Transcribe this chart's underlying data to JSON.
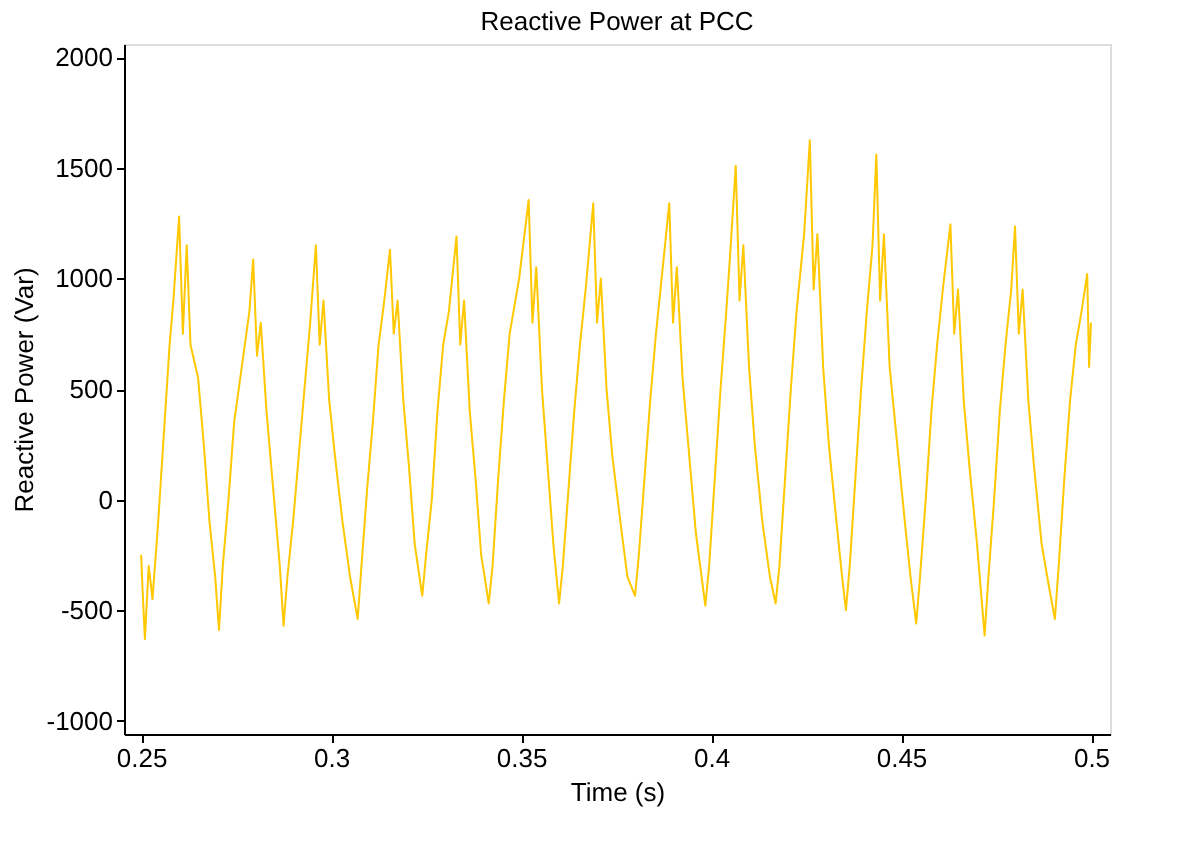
{
  "chart_data": {
    "type": "line",
    "title": "Reactive Power at PCC",
    "xlabel": "Time (s)",
    "ylabel": "Reactive Power (Var)",
    "xlim": [
      0.2455,
      0.505
    ],
    "xticks": [
      0.25,
      0.3,
      0.35,
      0.4,
      0.45,
      0.5
    ],
    "ylim": [
      -1060,
      2060
    ],
    "yticks": [
      -1000,
      -500,
      0,
      500,
      1000,
      1500,
      2000
    ],
    "grid": false,
    "legend": false,
    "marker": "none",
    "line_style": "solid",
    "series": [
      {
        "color": "#ffc800",
        "x": [
          0.25,
          0.2505,
          0.251,
          0.252,
          0.253,
          0.2545,
          0.256,
          0.2575,
          0.2585,
          0.26,
          0.261,
          0.262,
          0.263,
          0.265,
          0.2665,
          0.268,
          0.2695,
          0.2705,
          0.2715,
          0.273,
          0.2745,
          0.2765,
          0.2785,
          0.2795,
          0.2805,
          0.2815,
          0.283,
          0.2845,
          0.2865,
          0.2875,
          0.2885,
          0.29,
          0.2915,
          0.293,
          0.2945,
          0.296,
          0.297,
          0.298,
          0.2995,
          0.301,
          0.303,
          0.305,
          0.307,
          0.308,
          0.3095,
          0.311,
          0.3125,
          0.314,
          0.3155,
          0.3165,
          0.3175,
          0.319,
          0.3205,
          0.322,
          0.324,
          0.325,
          0.3265,
          0.328,
          0.3295,
          0.331,
          0.333,
          0.334,
          0.335,
          0.3365,
          0.338,
          0.3395,
          0.3415,
          0.3425,
          0.344,
          0.3455,
          0.347,
          0.3495,
          0.352,
          0.353,
          0.354,
          0.3555,
          0.357,
          0.3585,
          0.36,
          0.361,
          0.3625,
          0.364,
          0.3655,
          0.367,
          0.369,
          0.37,
          0.371,
          0.3725,
          0.374,
          0.3765,
          0.378,
          0.38,
          0.381,
          0.3825,
          0.384,
          0.3855,
          0.387,
          0.389,
          0.39,
          0.391,
          0.3925,
          0.394,
          0.396,
          0.3985,
          0.3995,
          0.401,
          0.4025,
          0.404,
          0.405,
          0.4065,
          0.4075,
          0.4085,
          0.41,
          0.4115,
          0.4135,
          0.4155,
          0.417,
          0.418,
          0.4195,
          0.421,
          0.4225,
          0.4245,
          0.426,
          0.427,
          0.428,
          0.4295,
          0.431,
          0.433,
          0.4345,
          0.4355,
          0.4365,
          0.438,
          0.4395,
          0.441,
          0.4425,
          0.4435,
          0.4445,
          0.4455,
          0.447,
          0.449,
          0.451,
          0.4525,
          0.454,
          0.455,
          0.4565,
          0.458,
          0.4595,
          0.461,
          0.463,
          0.464,
          0.465,
          0.4665,
          0.468,
          0.47,
          0.472,
          0.473,
          0.4745,
          0.476,
          0.4775,
          0.479,
          0.48,
          0.481,
          0.482,
          0.4835,
          0.485,
          0.487,
          0.489,
          0.4905,
          0.4915,
          0.493,
          0.4945,
          0.496,
          0.4975,
          0.499,
          0.4995,
          0.5
        ],
        "values": [
          -250,
          -450,
          -630,
          -300,
          -450,
          -100,
          300,
          700,
          900,
          1280,
          750,
          1150,
          700,
          550,
          250,
          -100,
          -350,
          -590,
          -300,
          0,
          350,
          600,
          850,
          1085,
          650,
          800,
          400,
          100,
          -300,
          -570,
          -350,
          -100,
          200,
          500,
          800,
          1150,
          700,
          900,
          450,
          200,
          -100,
          -350,
          -540,
          -300,
          50,
          350,
          700,
          900,
          1130,
          750,
          900,
          450,
          150,
          -200,
          -435,
          -250,
          0,
          400,
          700,
          850,
          1190,
          700,
          900,
          400,
          100,
          -250,
          -470,
          -300,
          100,
          450,
          750,
          1000,
          1355,
          800,
          1050,
          500,
          150,
          -200,
          -470,
          -300,
          50,
          400,
          700,
          950,
          1340,
          800,
          1000,
          500,
          200,
          -150,
          -350,
          -435,
          -250,
          100,
          450,
          750,
          1000,
          1340,
          800,
          1050,
          550,
          250,
          -150,
          -480,
          -300,
          100,
          500,
          850,
          1100,
          1510,
          900,
          1150,
          600,
          250,
          -100,
          -350,
          -470,
          -300,
          100,
          500,
          850,
          1200,
          1625,
          950,
          1200,
          600,
          250,
          -100,
          -350,
          -500,
          -300,
          100,
          500,
          850,
          1150,
          1560,
          900,
          1200,
          600,
          250,
          -100,
          -350,
          -560,
          -350,
          0,
          400,
          700,
          950,
          1245,
          750,
          950,
          450,
          150,
          -200,
          -615,
          -350,
          0,
          400,
          700,
          950,
          1235,
          750,
          950,
          450,
          150,
          -200,
          -400,
          -540,
          -300,
          100,
          450,
          700,
          850,
          1020,
          600,
          800
        ]
      }
    ]
  }
}
